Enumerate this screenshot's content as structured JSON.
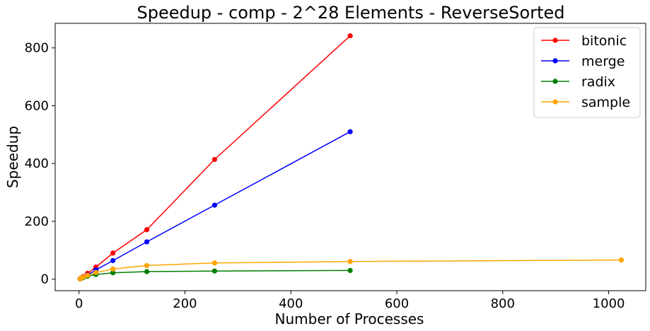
{
  "chart_data": {
    "type": "line",
    "title": "Speedup - comp - 2^28 Elements - ReverseSorted",
    "xlabel": "Number of Processes",
    "ylabel": "Speedup",
    "xlim": [
      -45,
      1070
    ],
    "ylim": [
      -40,
      885
    ],
    "xticks": [
      0,
      200,
      400,
      600,
      800,
      1000
    ],
    "yticks": [
      0,
      200,
      400,
      600,
      800
    ],
    "grid": false,
    "legend_position": "top-right",
    "series": [
      {
        "name": "bitonic",
        "color": "#ff0000",
        "x": [
          2,
          4,
          8,
          16,
          32,
          64,
          128,
          256,
          512
        ],
        "y": [
          1.2,
          3.5,
          9,
          20,
          42,
          90,
          171,
          414,
          842
        ]
      },
      {
        "name": "merge",
        "color": "#0000ff",
        "x": [
          2,
          4,
          8,
          16,
          32,
          64,
          128,
          256,
          512
        ],
        "y": [
          1,
          2.5,
          6,
          14,
          32,
          64,
          129,
          256,
          510
        ]
      },
      {
        "name": "radix",
        "color": "#008000",
        "x": [
          2,
          4,
          8,
          16,
          32,
          64,
          128,
          256,
          512
        ],
        "y": [
          1,
          2.5,
          5,
          10,
          16,
          22,
          26,
          28,
          30
        ]
      },
      {
        "name": "sample",
        "color": "#ffa500",
        "x": [
          2,
          4,
          8,
          16,
          32,
          64,
          128,
          256,
          512,
          1024
        ],
        "y": [
          1,
          3,
          7,
          13,
          23,
          35,
          47,
          56,
          61,
          66
        ]
      }
    ]
  }
}
